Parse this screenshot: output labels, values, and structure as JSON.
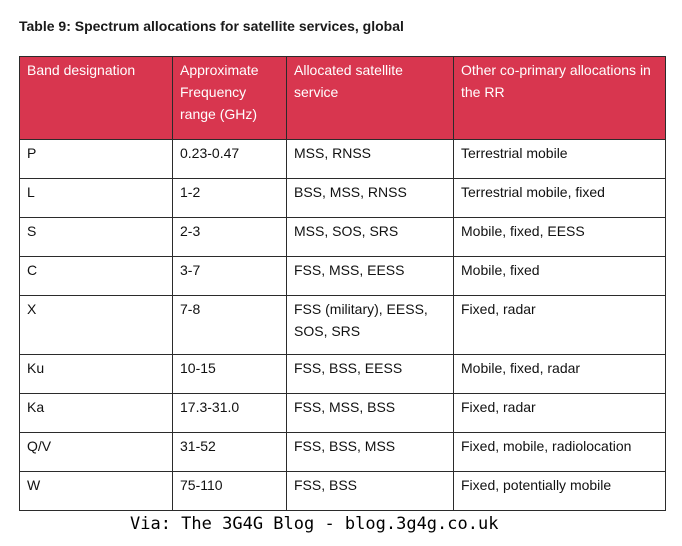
{
  "caption": "Table 9: Spectrum allocations for satellite services, global",
  "table": {
    "headers": [
      "Band designation",
      "Approximate Frequency range (GHz)",
      "Allocated satellite service",
      "Other co-primary allocations in the RR"
    ],
    "rows": [
      [
        "P",
        "0.23-0.47",
        "MSS, RNSS",
        "Terrestrial mobile"
      ],
      [
        "L",
        "1-2",
        "BSS, MSS, RNSS",
        "Terrestrial mobile, fixed"
      ],
      [
        "S",
        "2-3",
        "MSS, SOS, SRS",
        "Mobile, fixed, EESS"
      ],
      [
        "C",
        "3-7",
        "FSS, MSS, EESS",
        "Mobile, fixed"
      ],
      [
        "X",
        "7-8",
        "FSS (military), EESS, SOS, SRS",
        "Fixed, radar"
      ],
      [
        "Ku",
        "10-15",
        "FSS, BSS, EESS",
        "Mobile, fixed, radar"
      ],
      [
        "Ka",
        "17.3-31.0",
        "FSS, MSS, BSS",
        "Fixed, radar"
      ],
      [
        "Q/V",
        "31-52",
        "FSS, BSS, MSS",
        "Fixed, mobile, radiolocation"
      ],
      [
        "W",
        "75-110",
        "FSS, BSS",
        "Fixed, potentially mobile"
      ]
    ]
  },
  "footer": "Via: The 3G4G Blog - blog.3g4g.co.uk",
  "colors": {
    "header_bg": "#d8364f",
    "header_text": "#ffffff",
    "border": "#2b2b2b"
  }
}
